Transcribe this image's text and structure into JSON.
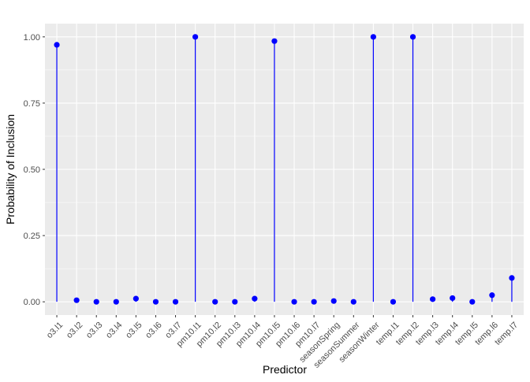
{
  "chart_data": {
    "type": "lollipop",
    "xlabel": "Predictor",
    "ylabel": "Probability of Inclusion",
    "ylim": [
      0,
      1
    ],
    "yticks": [
      "0.00",
      "0.25",
      "0.50",
      "0.75",
      "1.00"
    ],
    "grid": true,
    "colors": {
      "mark": "#0000ff",
      "panel": "#ebebeb",
      "grid": "#ffffff"
    },
    "categories": [
      "o3.l1",
      "o3.l2",
      "o3.l3",
      "o3.l4",
      "o3.l5",
      "o3.l6",
      "o3.l7",
      "pm10.l1",
      "pm10.l2",
      "pm10.l3",
      "pm10.l4",
      "pm10.l5",
      "pm10.l6",
      "pm10.l7",
      "seasonSpring",
      "seasonSummer",
      "seasonWinter",
      "temp.l1",
      "temp.l2",
      "temp.l3",
      "temp.l4",
      "temp.l5",
      "temp.l6",
      "temp.l7"
    ],
    "values": [
      0.97,
      0.006,
      0,
      0,
      0.012,
      0,
      0,
      1.0,
      0,
      0,
      0.012,
      0.984,
      0,
      0,
      0.003,
      0,
      1.0,
      0,
      1.0,
      0.01,
      0.014,
      0,
      0.025,
      0.09
    ]
  }
}
